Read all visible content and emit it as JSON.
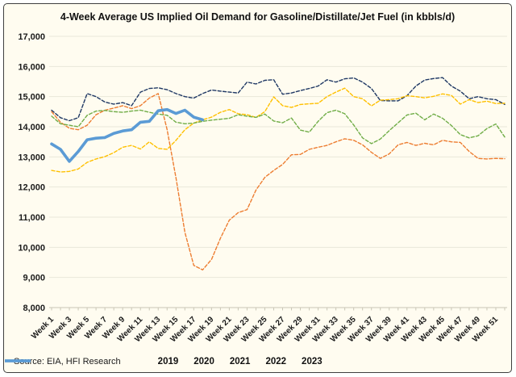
{
  "source_note": "Source: EIA, HFI Research",
  "chart_data": {
    "type": "line",
    "title": "4-Week Average US Implied Oil Demand for Gasoline/Distillate/Jet Fuel (in kbbls/d)",
    "xlabel": "",
    "ylabel": "",
    "ylim": [
      8000,
      17000
    ],
    "ytick_step": 1000,
    "ytick_labels": [
      "17,000",
      "16,000",
      "15,000",
      "14,000",
      "13,000",
      "12,000",
      "11,000",
      "10,000",
      "9,000",
      "8,000"
    ],
    "x_unit": "week-of-year (1-52)",
    "x_tick_labels": [
      "Week 1",
      "Week 3",
      "Week 5",
      "Week 7",
      "Week 9",
      "Week 11",
      "Week 13",
      "Week 15",
      "Week 17",
      "Week 19",
      "Week 21",
      "Week 23",
      "Week 25",
      "Week 27",
      "Week 29",
      "Week 31",
      "Week 33",
      "Week 35",
      "Week 37",
      "Week 39",
      "Week 41",
      "Week 43",
      "Week 45",
      "Week 47",
      "Week 49",
      "Week 51"
    ],
    "grid": "horizontal",
    "plot_bg": "#FFFCF0",
    "grid_color": "#EAE7DA",
    "axis_color": "#C9C6B6",
    "legend_position": "bottom",
    "series": [
      {
        "name": "2019",
        "color": "#1F3864",
        "style": "dashed",
        "width": 1.4,
        "values": [
          14550,
          14300,
          14200,
          14300,
          15100,
          15000,
          14820,
          14750,
          14800,
          14700,
          15150,
          15270,
          15290,
          15230,
          15100,
          15000,
          14950,
          15100,
          15220,
          15180,
          15150,
          15120,
          15480,
          15420,
          15540,
          15560,
          15080,
          15120,
          15200,
          15270,
          15350,
          15560,
          15480,
          15590,
          15620,
          15480,
          15270,
          14870,
          14860,
          14860,
          15030,
          15350,
          15550,
          15600,
          15630,
          15350,
          15180,
          14930,
          15000,
          14930,
          14900,
          14740
        ]
      },
      {
        "name": "2020",
        "color": "#ED7D31",
        "style": "dashed",
        "width": 1.4,
        "values": [
          14500,
          14150,
          13950,
          13900,
          14050,
          14400,
          14550,
          14620,
          14700,
          14600,
          14700,
          14950,
          15100,
          13900,
          12300,
          10500,
          9400,
          9250,
          9600,
          10300,
          10900,
          11150,
          11250,
          11900,
          12320,
          12550,
          12750,
          13070,
          13080,
          13250,
          13320,
          13380,
          13500,
          13600,
          13550,
          13400,
          13150,
          12950,
          13100,
          13400,
          13480,
          13380,
          13450,
          13400,
          13550,
          13500,
          13480,
          13180,
          12950,
          12930,
          12950,
          12940
        ]
      },
      {
        "name": "2021",
        "color": "#FFC000",
        "style": "dashed",
        "width": 1.4,
        "values": [
          12550,
          12500,
          12520,
          12600,
          12820,
          12930,
          13010,
          13140,
          13320,
          13380,
          13260,
          13500,
          13280,
          13250,
          13550,
          13900,
          14120,
          14230,
          14320,
          14480,
          14570,
          14430,
          14400,
          14310,
          14500,
          14990,
          14700,
          14640,
          14740,
          14760,
          14780,
          15000,
          15150,
          15280,
          15000,
          14930,
          14690,
          14880,
          14900,
          14930,
          15030,
          15000,
          14960,
          15010,
          15090,
          15040,
          14750,
          14900,
          14800,
          14850,
          14770,
          14780
        ]
      },
      {
        "name": "2022",
        "color": "#70AD47",
        "style": "dashed",
        "width": 1.4,
        "values": [
          14350,
          14100,
          14050,
          14000,
          14380,
          14520,
          14540,
          14500,
          14480,
          14520,
          14550,
          14480,
          14420,
          14380,
          14150,
          14100,
          14120,
          14180,
          14220,
          14250,
          14280,
          14400,
          14350,
          14310,
          14420,
          14190,
          14130,
          14290,
          13890,
          13820,
          14180,
          14470,
          14550,
          14430,
          14060,
          13630,
          13440,
          13590,
          13870,
          14130,
          14390,
          14450,
          14230,
          14420,
          14280,
          14040,
          13740,
          13630,
          13700,
          13940,
          14090,
          13660
        ]
      },
      {
        "name": "2023",
        "color": "#5B9BD5",
        "style": "solid",
        "width": 3.6,
        "values": [
          13430,
          13250,
          12850,
          13180,
          13570,
          13620,
          13640,
          13780,
          13860,
          13900,
          14150,
          14180,
          14530,
          14570,
          14440,
          14550,
          14320,
          14230
        ]
      }
    ]
  }
}
